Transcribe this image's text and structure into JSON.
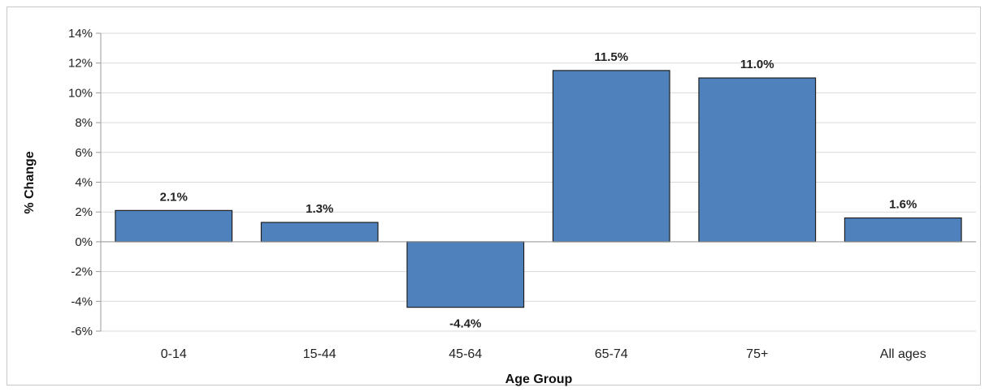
{
  "chart_data": {
    "type": "bar",
    "title": "",
    "xlabel": "Age Group",
    "ylabel": "% Change",
    "categories": [
      "0-14",
      "15-44",
      "45-64",
      "65-74",
      "75+",
      "All ages"
    ],
    "values": [
      2.1,
      1.3,
      -4.4,
      11.5,
      11.0,
      1.6
    ],
    "data_labels": [
      "2.1%",
      "1.3%",
      "-4.4%",
      "11.5%",
      "11.0%",
      "1.6%"
    ],
    "ylim": [
      -6,
      14
    ],
    "yticks": [
      -6,
      -4,
      -2,
      0,
      2,
      4,
      6,
      8,
      10,
      12,
      14
    ],
    "ytick_labels": [
      "-6%",
      "-4%",
      "-2%",
      "0%",
      "2%",
      "4%",
      "6%",
      "8%",
      "10%",
      "12%",
      "14%"
    ],
    "grid": true,
    "legend": false,
    "colors": {
      "bar": "#4f81bd",
      "bar_edge": "#1f1f1f",
      "grid": "#d9d9d9",
      "axis": "#9a9a9a"
    }
  }
}
